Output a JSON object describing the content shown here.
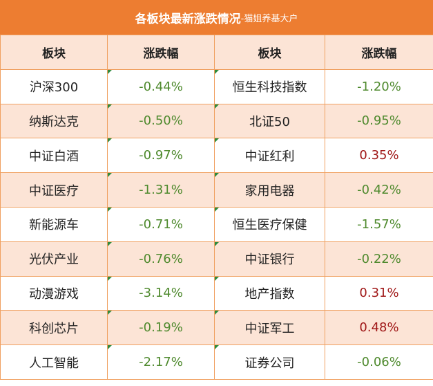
{
  "header": {
    "title": "各板块最新涨跌情况",
    "subtitle": "-猫姐养基大户"
  },
  "table": {
    "columns": [
      "板块",
      "涨跌幅",
      "板块",
      "涨跌幅"
    ],
    "rows": [
      [
        "沪深300",
        "-0.44%",
        "恒生科技指数",
        "-1.20%"
      ],
      [
        "纳斯达克",
        "-0.50%",
        "北证50",
        "-0.95%"
      ],
      [
        "中证白酒",
        "-0.97%",
        "中证红利",
        "0.35%"
      ],
      [
        "中证医疗",
        "-1.31%",
        "家用电器",
        "-0.42%"
      ],
      [
        "新能源车",
        "-0.71%",
        "恒生医疗保健",
        "-1.57%"
      ],
      [
        "光伏产业",
        "-0.76%",
        "中证银行",
        "-0.22%"
      ],
      [
        "动漫游戏",
        "-3.14%",
        "地产指数",
        "0.31%"
      ],
      [
        "科创芯片",
        "-0.19%",
        "中证军工",
        "0.48%"
      ],
      [
        "人工智能",
        "-2.17%",
        "证券公司",
        "-0.06%"
      ]
    ]
  }
}
